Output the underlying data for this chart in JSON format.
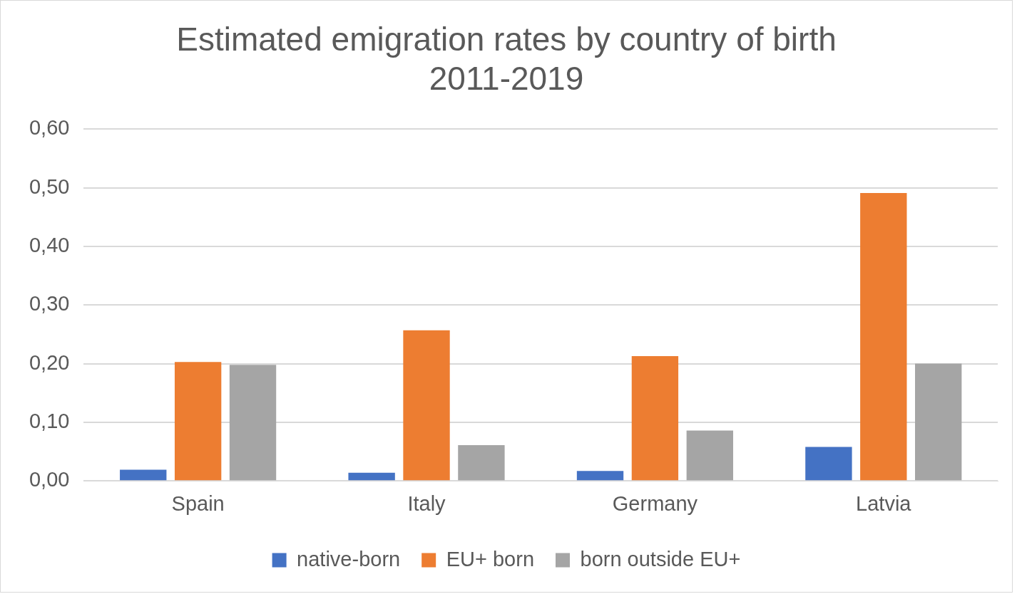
{
  "chart_data": {
    "type": "bar",
    "title": "Estimated emigration rates by country of birth\n2011-2019",
    "categories": [
      "Spain",
      "Italy",
      "Germany",
      "Latvia"
    ],
    "series": [
      {
        "name": "native-born",
        "color": "#4472c4",
        "values": [
          0.019,
          0.014,
          0.017,
          0.058
        ]
      },
      {
        "name": "EU+ born",
        "color": "#ed7d31",
        "values": [
          0.203,
          0.257,
          0.213,
          0.491
        ]
      },
      {
        "name": "born outside EU+",
        "color": "#a5a5a5",
        "values": [
          0.198,
          0.061,
          0.086,
          0.2
        ]
      }
    ],
    "ylim": [
      0,
      0.6
    ],
    "yticks": [
      {
        "value": 0,
        "label": "0,00"
      },
      {
        "value": 0.1,
        "label": "0,10"
      },
      {
        "value": 0.2,
        "label": "0,20"
      },
      {
        "value": 0.3,
        "label": "0,30"
      },
      {
        "value": 0.4,
        "label": "0,40"
      },
      {
        "value": 0.5,
        "label": "0,50"
      },
      {
        "value": 0.6,
        "label": "0,60"
      }
    ],
    "grid": "y",
    "legend": "bottom"
  }
}
